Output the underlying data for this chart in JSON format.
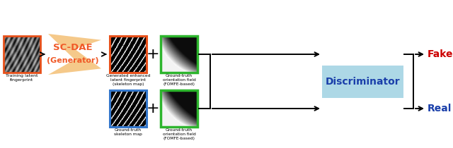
{
  "bg_color": "#ffffff",
  "fig_width": 6.4,
  "fig_height": 2.1,
  "dpi": 100,
  "generator_box_color": "#f5c98a",
  "generator_text_color": "#f05a28",
  "discriminator_box_color": "#add8e6",
  "discriminator_text_color": "#1a3faa",
  "fake_color": "#cc0000",
  "real_color": "#1a3faa",
  "orange_border": "#e8501a",
  "green_border": "#2db52d",
  "blue_border": "#3377cc",
  "label_latent": "Training latent\nfingerprint",
  "label_generated": "Generated enhanced\nlatent fingerprint\n(skeleton map)",
  "label_gt_skeleton": "Ground-truth\nskeleton map",
  "label_gt_orient_top": "Ground-truth\norientation field\n(FOMFE-based)",
  "label_gt_orient_bot": "Ground-truth\norientation field\n(FOMFE-based)",
  "label_discriminator": "Discriminator",
  "label_fake": "Fake",
  "label_real": "Real",
  "label_sc_dae": "SC-DAE",
  "label_generator": "(Generator)"
}
